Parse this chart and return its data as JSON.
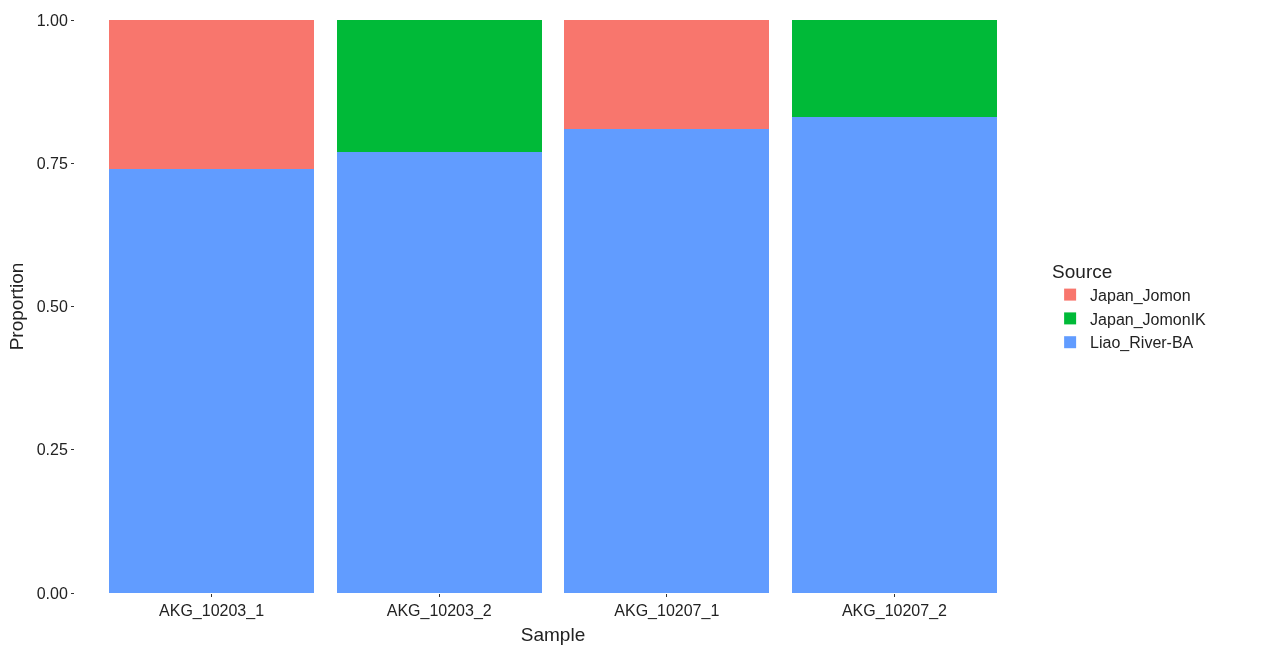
{
  "chart_data": {
    "type": "bar",
    "stacked": true,
    "xlabel": "Sample",
    "ylabel": "Proportion",
    "legend_title": "Source",
    "legend": "right",
    "categories": [
      "AKG_10203_1",
      "AKG_10203_2",
      "AKG_10207_1",
      "AKG_10207_2"
    ],
    "series": [
      {
        "name": "Liao_River-BA",
        "color": "#619cff",
        "values": [
          0.74,
          0.77,
          0.81,
          0.83
        ]
      },
      {
        "name": "Japan_Jomon",
        "color": "#f8766d",
        "values": [
          0.26,
          null,
          0.19,
          null
        ]
      },
      {
        "name": "Japan_JomonIK",
        "color": "#00ba38",
        "values": [
          null,
          0.23,
          null,
          0.17
        ]
      }
    ],
    "ylim": [
      0,
      1
    ],
    "yticks": [
      {
        "value": 0,
        "label": "0.00"
      },
      {
        "value": 0.25,
        "label": "0.25"
      },
      {
        "value": 0.5,
        "label": "0.50"
      },
      {
        "value": 0.75,
        "label": "0.75"
      },
      {
        "value": 1,
        "label": "1.00"
      }
    ]
  }
}
